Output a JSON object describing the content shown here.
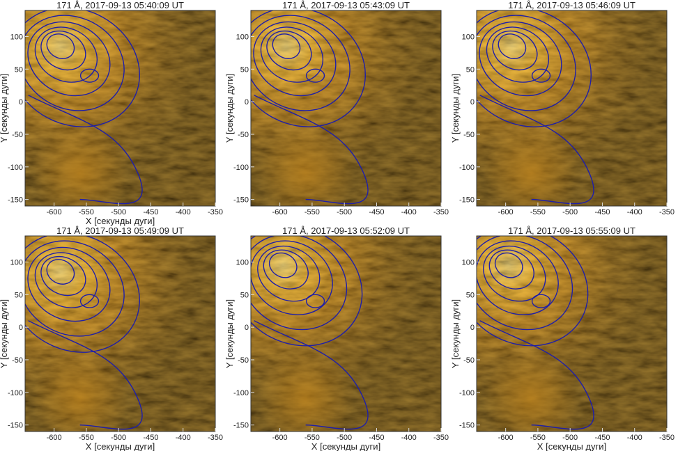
{
  "figure": {
    "panels": [
      {
        "title": "171 Å, 2017-09-13 05:40:09 UT",
        "xlabel": "X [секунды дуги]",
        "ylabel": "Y [секунды дуги]",
        "xticks": [
          "-600",
          "-550",
          "-500",
          "-450",
          "-400",
          "-350"
        ],
        "yticks": [
          "100",
          "50",
          "0",
          "-50",
          "-100",
          "-150"
        ]
      },
      {
        "title": "171 Å, 2017-09-13 05:43:09 UT",
        "xlabel": "",
        "ylabel": "Y [секунды дуги]",
        "xticks": [
          "-600",
          "-550",
          "-500",
          "-450",
          "-400",
          "-350"
        ],
        "yticks": [
          "100",
          "50",
          "0",
          "-50",
          "-100",
          "-150"
        ]
      },
      {
        "title": "171 Å, 2017-09-13 05:46:09 UT",
        "xlabel": "",
        "ylabel": "Y [секунды дуги]",
        "xticks": [
          "-600",
          "-550",
          "-500",
          "-450",
          "-400",
          "-350"
        ],
        "yticks": [
          "100",
          "50",
          "0",
          "-50",
          "-100",
          "-150"
        ]
      },
      {
        "title": "171 Å, 2017-09-13 05:49:09 UT",
        "xlabel": "X [секунды дуги]",
        "ylabel": "Y [секунды дуги]",
        "xticks": [
          "-600",
          "-550",
          "-500",
          "-450",
          "-400",
          "-350"
        ],
        "yticks": [
          "100",
          "50",
          "0",
          "-50",
          "-100",
          "-150"
        ]
      },
      {
        "title": "171 Å, 2017-09-13 05:52:09 UT",
        "xlabel": "X [секунды дуги]",
        "ylabel": "Y [секунды дуги]",
        "xticks": [
          "-600",
          "-550",
          "-500",
          "-450",
          "-400",
          "-350"
        ],
        "yticks": [
          "100",
          "50",
          "0",
          "-50",
          "-100",
          "-150"
        ]
      },
      {
        "title": "171 Å, 2017-09-13 05:55:09 UT",
        "xlabel": "X [секунды дуги]",
        "ylabel": "Y [секунды дуги]",
        "xticks": [
          "-600",
          "-550",
          "-500",
          "-450",
          "-400",
          "-350"
        ],
        "yticks": [
          "100",
          "50",
          "0",
          "-50",
          "-100",
          "-150"
        ]
      }
    ]
  },
  "chart_data": [
    {
      "type": "heatmap",
      "title": "171 Å, 2017-09-13 05:40:09 UT",
      "xlabel": "X [секунды дуги]",
      "ylabel": "Y [секунды дуги]",
      "xlim": [
        -645,
        -350
      ],
      "ylim": [
        -160,
        140
      ],
      "bright_center": [
        -590,
        85
      ],
      "contour_color": "#1f1fa8"
    },
    {
      "type": "heatmap",
      "title": "171 Å, 2017-09-13 05:43:09 UT",
      "xlabel": "",
      "ylabel": "Y [секунды дуги]",
      "xlim": [
        -645,
        -350
      ],
      "ylim": [
        -160,
        140
      ],
      "bright_center": [
        -590,
        85
      ],
      "contour_color": "#1f1fa8"
    },
    {
      "type": "heatmap",
      "title": "171 Å, 2017-09-13 05:46:09 UT",
      "xlabel": "",
      "ylabel": "Y [секунды дуги]",
      "xlim": [
        -645,
        -350
      ],
      "ylim": [
        -160,
        140
      ],
      "bright_center": [
        -590,
        85
      ],
      "contour_color": "#1f1fa8"
    },
    {
      "type": "heatmap",
      "title": "171 Å, 2017-09-13 05:49:09 UT",
      "xlabel": "X [секунды дуги]",
      "ylabel": "Y [секунды дуги]",
      "xlim": [
        -645,
        -350
      ],
      "ylim": [
        -160,
        140
      ],
      "bright_center": [
        -590,
        85
      ],
      "contour_color": "#1f1fa8"
    },
    {
      "type": "heatmap",
      "title": "171 Å, 2017-09-13 05:52:09 UT",
      "xlabel": "X [секунды дуги]",
      "ylabel": "Y [секунды дуги]",
      "xlim": [
        -645,
        -350
      ],
      "ylim": [
        -160,
        140
      ],
      "bright_center": [
        -595,
        95
      ],
      "contour_color": "#1f1fa8"
    },
    {
      "type": "heatmap",
      "title": "171 Å, 2017-09-13 05:55:09 UT",
      "xlabel": "X [секунды дуги]",
      "ylabel": "Y [секунды дуги]",
      "xlim": [
        -645,
        -350
      ],
      "ylim": [
        -160,
        140
      ],
      "bright_center": [
        -595,
        95
      ],
      "contour_color": "#1f1fa8"
    }
  ]
}
